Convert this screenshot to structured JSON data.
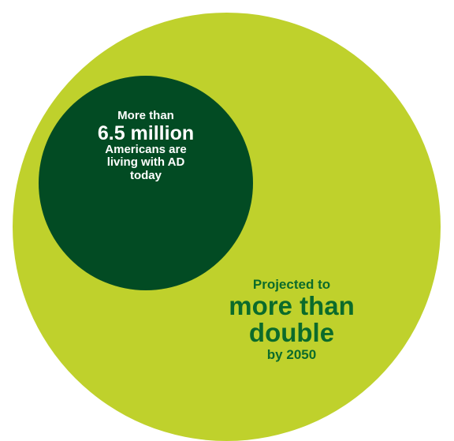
{
  "colors": {
    "outer_circle": "#bfd12c",
    "inner_circle": "#024b23",
    "inner_text": "#ffffff",
    "outer_text": "#0b6b2b",
    "background": "#ffffff"
  },
  "today": {
    "line1": "More than",
    "line2": "6.5 million",
    "line3": "Americans are",
    "line4": "living with AD",
    "line5": "today"
  },
  "projection": {
    "line1": "Projected to",
    "line2": "more than",
    "line3": "double",
    "line4": "by 2050"
  }
}
